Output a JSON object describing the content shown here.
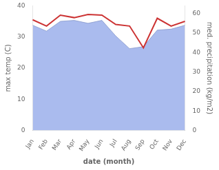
{
  "chart_data": {
    "type": "line",
    "categories": [
      "Jan",
      "Feb",
      "Mar",
      "Apr",
      "May",
      "Jun",
      "Jul",
      "Aug",
      "Sep",
      "Oct",
      "Nov",
      "Dec"
    ],
    "xlabel": "date (month)",
    "ylabel": "max temp (C)",
    "y2label": "med. precipitation (kg/m2)",
    "series": [
      {
        "type": "area",
        "axis": "y2",
        "color": "#aabbee",
        "values": [
          54.0,
          51.0,
          56.0,
          56.5,
          55.0,
          56.5,
          48.5,
          42.0,
          43.0,
          51.5,
          52.0,
          54.0
        ]
      },
      {
        "type": "line",
        "axis": "y",
        "color": "#cc3333",
        "values": [
          35.5,
          33.5,
          37.0,
          36.2,
          37.2,
          37.0,
          34.0,
          33.5,
          26.5,
          36.0,
          33.5,
          35.0
        ]
      }
    ],
    "ylim": [
      0,
      40
    ],
    "yticks": [
      0,
      10,
      20,
      30,
      40
    ],
    "y2lim": [
      0,
      64
    ],
    "y2ticks": [
      0,
      10,
      20,
      30,
      40,
      50,
      60
    ],
    "grid": false
  }
}
